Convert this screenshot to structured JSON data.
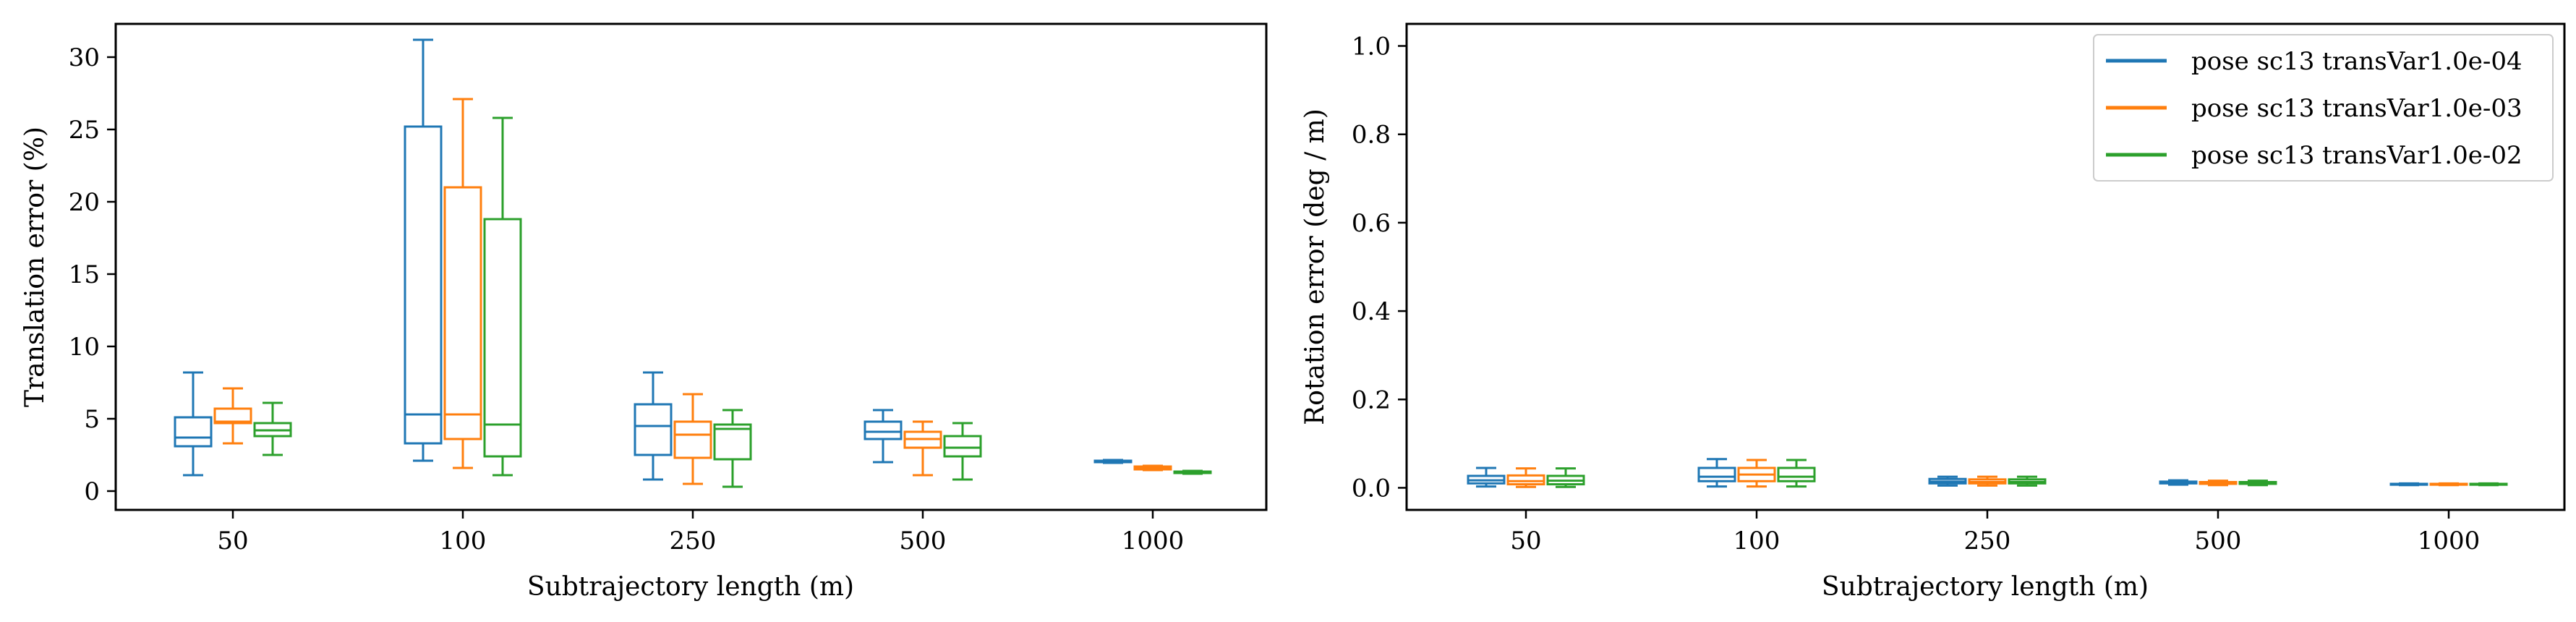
{
  "chart_data": [
    {
      "type": "box",
      "xlabel": "Subtrajectory length (m)",
      "ylabel": "Translation error (%)",
      "categories": [
        "50",
        "100",
        "250",
        "500",
        "1000"
      ],
      "ylim": [
        -1.3,
        32.3
      ],
      "yticks": [
        0,
        5,
        10,
        15,
        20,
        25,
        30
      ],
      "series": [
        {
          "name": "pose sc13 transVar1.0e-04",
          "color": "#1f77b4",
          "boxes": [
            {
              "min": 1.1,
              "q1": 3.1,
              "median": 3.7,
              "q3": 5.1,
              "max": 8.2
            },
            {
              "min": 2.1,
              "q1": 3.3,
              "median": 5.3,
              "q3": 25.2,
              "max": 31.2
            },
            {
              "min": 0.8,
              "q1": 2.5,
              "median": 4.5,
              "q3": 6.0,
              "max": 8.2
            },
            {
              "min": 2.0,
              "q1": 3.6,
              "median": 4.1,
              "q3": 4.8,
              "max": 5.6
            },
            {
              "min": 1.95,
              "q1": 2.0,
              "median": 2.05,
              "q3": 2.1,
              "max": 2.15
            }
          ]
        },
        {
          "name": "pose sc13 transVar1.0e-03",
          "color": "#ff7f0e",
          "boxes": [
            {
              "min": 3.3,
              "q1": 4.7,
              "median": 4.8,
              "q3": 5.7,
              "max": 7.1
            },
            {
              "min": 1.6,
              "q1": 3.6,
              "median": 5.3,
              "q3": 21.0,
              "max": 27.1
            },
            {
              "min": 0.5,
              "q1": 2.3,
              "median": 3.9,
              "q3": 4.8,
              "max": 6.7
            },
            {
              "min": 1.1,
              "q1": 3.0,
              "median": 3.6,
              "q3": 4.1,
              "max": 4.8
            },
            {
              "min": 1.45,
              "q1": 1.5,
              "median": 1.6,
              "q3": 1.7,
              "max": 1.75
            }
          ]
        },
        {
          "name": "pose sc13 transVar1.0e-02",
          "color": "#2ca02c",
          "boxes": [
            {
              "min": 2.5,
              "q1": 3.8,
              "median": 4.2,
              "q3": 4.7,
              "max": 6.1
            },
            {
              "min": 1.1,
              "q1": 2.4,
              "median": 4.6,
              "q3": 18.8,
              "max": 25.8
            },
            {
              "min": 0.3,
              "q1": 2.2,
              "median": 4.3,
              "q3": 4.6,
              "max": 5.6
            },
            {
              "min": 0.8,
              "q1": 2.4,
              "median": 3.0,
              "q3": 3.8,
              "max": 4.7
            },
            {
              "min": 1.2,
              "q1": 1.25,
              "median": 1.3,
              "q3": 1.35,
              "max": 1.4
            }
          ]
        }
      ]
    },
    {
      "type": "box",
      "xlabel": "Subtrajectory length (m)",
      "ylabel": "Rotation error (deg / m)",
      "categories": [
        "50",
        "100",
        "250",
        "500",
        "1000"
      ],
      "ylim": [
        -0.05,
        1.05
      ],
      "yticks": [
        "0.0",
        "0.2",
        "0.4",
        "0.6",
        "0.8",
        "1.0"
      ],
      "legend": "top-right",
      "series": [
        {
          "name": "pose sc13 transVar1.0e-04",
          "color": "#1f77b4",
          "boxes": [
            {
              "min": 0.003,
              "q1": 0.01,
              "median": 0.017,
              "q3": 0.027,
              "max": 0.045
            },
            {
              "min": 0.003,
              "q1": 0.015,
              "median": 0.025,
              "q3": 0.045,
              "max": 0.065
            },
            {
              "min": 0.005,
              "q1": 0.01,
              "median": 0.014,
              "q3": 0.02,
              "max": 0.025
            },
            {
              "min": 0.007,
              "q1": 0.01,
              "median": 0.012,
              "q3": 0.014,
              "max": 0.017
            },
            {
              "min": 0.006,
              "q1": 0.007,
              "median": 0.008,
              "q3": 0.009,
              "max": 0.01
            }
          ]
        },
        {
          "name": "pose sc13 transVar1.0e-03",
          "color": "#ff7f0e",
          "boxes": [
            {
              "min": 0.002,
              "q1": 0.008,
              "median": 0.015,
              "q3": 0.028,
              "max": 0.044
            },
            {
              "min": 0.003,
              "q1": 0.015,
              "median": 0.03,
              "q3": 0.045,
              "max": 0.063
            },
            {
              "min": 0.005,
              "q1": 0.01,
              "median": 0.013,
              "q3": 0.019,
              "max": 0.025
            },
            {
              "min": 0.006,
              "q1": 0.009,
              "median": 0.011,
              "q3": 0.013,
              "max": 0.016
            },
            {
              "min": 0.006,
              "q1": 0.007,
              "median": 0.008,
              "q3": 0.009,
              "max": 0.01
            }
          ]
        },
        {
          "name": "pose sc13 transVar1.0e-02",
          "color": "#2ca02c",
          "boxes": [
            {
              "min": 0.002,
              "q1": 0.008,
              "median": 0.016,
              "q3": 0.027,
              "max": 0.044
            },
            {
              "min": 0.003,
              "q1": 0.015,
              "median": 0.025,
              "q3": 0.045,
              "max": 0.063
            },
            {
              "min": 0.005,
              "q1": 0.01,
              "median": 0.013,
              "q3": 0.019,
              "max": 0.025
            },
            {
              "min": 0.006,
              "q1": 0.009,
              "median": 0.011,
              "q3": 0.013,
              "max": 0.016
            },
            {
              "min": 0.006,
              "q1": 0.007,
              "median": 0.008,
              "q3": 0.009,
              "max": 0.01
            }
          ]
        }
      ]
    }
  ]
}
